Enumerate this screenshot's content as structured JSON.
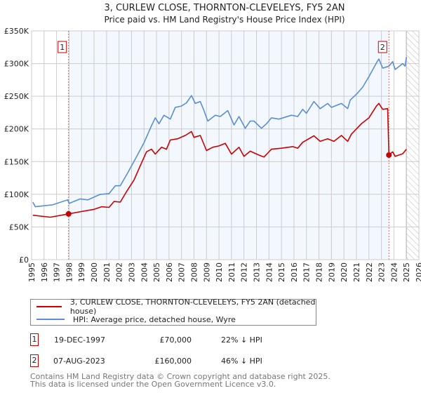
{
  "chart_data": {
    "type": "line",
    "title": "3, CURLEW CLOSE, THORNTON-CLEVELEYS, FY5 2AN",
    "subtitle": "Price paid vs. HM Land Registry's House Price Index (HPI)",
    "xlim": [
      1995,
      2026
    ],
    "ylim": [
      0,
      350000
    ],
    "x_ticks": [
      "1995",
      "1996",
      "1997",
      "1998",
      "1999",
      "2000",
      "2001",
      "2002",
      "2003",
      "2004",
      "2005",
      "2006",
      "2007",
      "2008",
      "2009",
      "2010",
      "2011",
      "2012",
      "2013",
      "2014",
      "2015",
      "2016",
      "2017",
      "2018",
      "2019",
      "2020",
      "2021",
      "2022",
      "2023",
      "2024",
      "2025",
      "2026"
    ],
    "y_ticks": [
      {
        "v": 0,
        "label": "£0"
      },
      {
        "v": 50000,
        "label": "£50K"
      },
      {
        "v": 100000,
        "label": "£100K"
      },
      {
        "v": 150000,
        "label": "£150K"
      },
      {
        "v": 200000,
        "label": "£200K"
      },
      {
        "v": 250000,
        "label": "£250K"
      },
      {
        "v": 300000,
        "label": "£300K"
      },
      {
        "v": 350000,
        "label": "£350K"
      }
    ],
    "grid": true,
    "shaded_range": [
      1997.96,
      2023.6
    ],
    "forecast_hatch_from": 2025.0,
    "series": [
      {
        "name": "3, CURLEW CLOSE, THORNTON-CLEVELEYS, FY5 2AN (detached house)",
        "color": "#cc0000",
        "x": [
          1995.1,
          1996.5,
          1997.96,
          1999,
          2000,
          2000.6,
          2001.2,
          2001.6,
          2002.1,
          2002.6,
          2003.2,
          2003.7,
          2004.2,
          2004.6,
          2004.9,
          2005.4,
          2005.8,
          2006.1,
          2006.7,
          2007.3,
          2007.8,
          2008,
          2008.5,
          2009,
          2009.5,
          2010,
          2010.5,
          2011,
          2011.6,
          2012,
          2012.5,
          2013.2,
          2013.6,
          2014.2,
          2015,
          2015.9,
          2016.3,
          2016.7,
          2017.6,
          2018.1,
          2018.7,
          2019.2,
          2019.8,
          2020.3,
          2020.6,
          2021.4,
          2022,
          2022.6,
          2022.8,
          2023.1,
          2023.5,
          2023.6,
          2023.9,
          2024.1,
          2024.7,
          2025
        ],
        "y": [
          68000,
          65000,
          70000,
          73600,
          77000,
          81000,
          80000,
          89000,
          88000,
          104000,
          122000,
          143600,
          165000,
          169000,
          161500,
          172000,
          169000,
          183000,
          185000,
          190000,
          196000,
          187000,
          190000,
          167000,
          172000,
          174000,
          178000,
          161500,
          172000,
          158000,
          166000,
          160000,
          157000,
          169000,
          170500,
          173000,
          170500,
          179500,
          189500,
          181000,
          185000,
          181000,
          190000,
          181000,
          192000,
          208000,
          217000,
          235000,
          239000,
          230000,
          231000,
          160000,
          165000,
          158000,
          162000,
          169000
        ]
      },
      {
        "name": "HPI: Average price, detached house, Wyre",
        "color": "#5b8fd0",
        "x": [
          1995.1,
          1995.3,
          1996.7,
          1997.9,
          1998,
          1998.9,
          1999.5,
          2000.5,
          2001.2,
          2001.7,
          2002.1,
          2002.7,
          2003.3,
          2004,
          2004.6,
          2004.9,
          2005.2,
          2005.6,
          2006.1,
          2006.5,
          2007,
          2007.4,
          2007.8,
          2008.1,
          2008.5,
          2008.8,
          2009.1,
          2009.7,
          2010.1,
          2010.7,
          2011.2,
          2011.6,
          2012.1,
          2012.5,
          2012.8,
          2013.4,
          2013.8,
          2014.2,
          2014.8,
          2015.8,
          2016.3,
          2016.7,
          2017,
          2017.6,
          2018.1,
          2018.7,
          2019,
          2019.8,
          2020.3,
          2020.5,
          2021.1,
          2021.5,
          2022,
          2022.6,
          2022.8,
          2023.1,
          2023.6,
          2023.9,
          2024.1,
          2024.7,
          2024.9,
          2025
        ],
        "y": [
          88000,
          81000,
          84000,
          91500,
          86000,
          93000,
          91500,
          100000,
          101000,
          113000,
          113000,
          133000,
          154000,
          179000,
          205000,
          217000,
          208000,
          221000,
          215000,
          233000,
          235000,
          240000,
          251000,
          239000,
          242000,
          228000,
          212000,
          221000,
          219000,
          228000,
          206000,
          219000,
          201000,
          212000,
          212000,
          201000,
          208000,
          217000,
          215000,
          221000,
          219000,
          230000,
          224000,
          242000,
          231000,
          239000,
          233000,
          239000,
          231000,
          244000,
          255000,
          264000,
          280000,
          301000,
          307000,
          293000,
          296000,
          303000,
          291000,
          300000,
          296000,
          310000
        ]
      }
    ],
    "sales": [
      {
        "id": "1",
        "x": 1997.96,
        "y": 70000,
        "date": "19-DEC-1997",
        "price": "£70,000",
        "hpi": "22% ↓ HPI"
      },
      {
        "id": "2",
        "x": 2023.6,
        "y": 160000,
        "date": "07-AUG-2023",
        "price": "£160,000",
        "hpi": "46% ↓ HPI"
      }
    ],
    "legend_position": "below"
  },
  "legend": {
    "red_label": "3, CURLEW CLOSE, THORNTON-CLEVELEYS, FY5 2AN (detached house)",
    "blue_label": "HPI: Average price, detached house, Wyre"
  },
  "footer": {
    "line1": "Contains HM Land Registry data © Crown copyright and database right 2025.",
    "line2": "This data is licensed under the Open Government Licence v3.0."
  }
}
